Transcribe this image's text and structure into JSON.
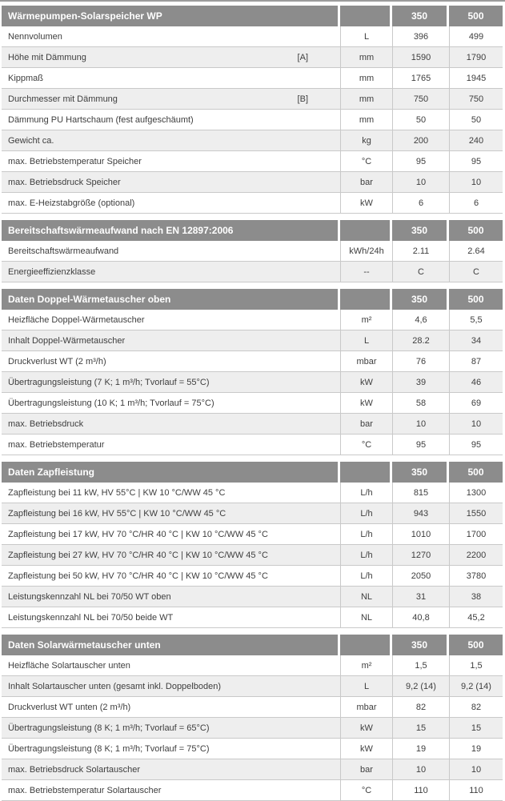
{
  "table": {
    "sections": [
      {
        "title": "Wärmepumpen-Solarspeicher WP",
        "col350": "350",
        "col500": "500",
        "rows": [
          {
            "label": "Nennvolumen",
            "unit": "L",
            "v350": "396",
            "v500": "499"
          },
          {
            "label": "Höhe mit Dämmung",
            "bracket": "[A]",
            "unit": "mm",
            "v350": "1590",
            "v500": "1790"
          },
          {
            "label": "Kippmaß",
            "unit": "mm",
            "v350": "1765",
            "v500": "1945"
          },
          {
            "label": "Durchmesser mit Dämmung",
            "bracket": "[B]",
            "unit": "mm",
            "v350": "750",
            "v500": "750"
          },
          {
            "label": "Dämmung PU Hartschaum (fest aufgeschäumt)",
            "unit": "mm",
            "v350": "50",
            "v500": "50"
          },
          {
            "label": "Gewicht ca.",
            "unit": "kg",
            "v350": "200",
            "v500": "240"
          },
          {
            "label": "max. Betriebstemperatur Speicher",
            "unit": "°C",
            "v350": "95",
            "v500": "95"
          },
          {
            "label": "max. Betriebsdruck Speicher",
            "unit": "bar",
            "v350": "10",
            "v500": "10"
          },
          {
            "label": "max. E-Heizstabgröße (optional)",
            "unit": "kW",
            "v350": "6",
            "v500": "6"
          }
        ]
      },
      {
        "title": "Bereitschaftswärmeaufwand nach EN 12897:2006",
        "col350": "350",
        "col500": "500",
        "rows": [
          {
            "label": "Bereitschaftswärmeaufwand",
            "unit": "kWh/24h",
            "v350": "2.11",
            "v500": "2.64"
          },
          {
            "label": "Energieeffizienzklasse",
            "unit": "--",
            "v350": "C",
            "v500": "C"
          }
        ]
      },
      {
        "title": "Daten Doppel-Wärmetauscher oben",
        "col350": "350",
        "col500": "500",
        "rows": [
          {
            "label": "Heizfläche Doppel-Wärmetauscher",
            "unit": "m²",
            "v350": "4,6",
            "v500": "5,5"
          },
          {
            "label": "Inhalt Doppel-Wärmetauscher",
            "unit": "L",
            "v350": "28.2",
            "v500": "34"
          },
          {
            "label": "Druckverlust WT (2 m³/h)",
            "unit": "mbar",
            "v350": "76",
            "v500": "87"
          },
          {
            "label": "Übertragungsleistung (7 K; 1 m³/h; Tvorlauf = 55°C)",
            "unit": "kW",
            "v350": "39",
            "v500": "46"
          },
          {
            "label": "Übertragungsleistung (10 K; 1 m³/h; Tvorlauf = 75°C)",
            "unit": "kW",
            "v350": "58",
            "v500": "69"
          },
          {
            "label": "max. Betriebsdruck",
            "unit": "bar",
            "v350": "10",
            "v500": "10"
          },
          {
            "label": "max. Betriebstemperatur",
            "unit": "°C",
            "v350": "95",
            "v500": "95"
          }
        ]
      },
      {
        "title": "Daten Zapfleistung",
        "col350": "350",
        "col500": "500",
        "rows": [
          {
            "label": "Zapfleistung bei 11 kW, HV 55°C | KW 10 °C/WW 45 °C",
            "unit": "L/h",
            "v350": "815",
            "v500": "1300"
          },
          {
            "label": "Zapfleistung bei 16 kW, HV 55°C | KW 10 °C/WW 45 °C",
            "unit": "L/h",
            "v350": "943",
            "v500": "1550"
          },
          {
            "label": "Zapfleistung bei 17 kW, HV 70 °C/HR 40 °C | KW 10 °C/WW 45 °C",
            "unit": "L/h",
            "v350": "1010",
            "v500": "1700"
          },
          {
            "label": "Zapfleistung bei 27 kW, HV 70 °C/HR 40 °C | KW 10 °C/WW 45 °C",
            "unit": "L/h",
            "v350": "1270",
            "v500": "2200"
          },
          {
            "label": "Zapfleistung bei 50 kW, HV 70 °C/HR 40 °C | KW 10 °C/WW 45 °C",
            "unit": "L/h",
            "v350": "2050",
            "v500": "3780"
          },
          {
            "label": "Leistungskennzahl NL bei 70/50 WT oben",
            "unit": "NL",
            "v350": "31",
            "v500": "38"
          },
          {
            "label": "Leistungskennzahl NL bei 70/50 beide WT",
            "unit": "NL",
            "v350": "40,8",
            "v500": "45,2"
          }
        ]
      },
      {
        "title": "Daten Solarwärmetauscher unten",
        "col350": "350",
        "col500": "500",
        "rows": [
          {
            "label": "Heizfläche Solartauscher unten",
            "unit": "m²",
            "v350": "1,5",
            "v500": "1,5"
          },
          {
            "label": "Inhalt Solartauscher unten (gesamt inkl. Doppelboden)",
            "unit": "L",
            "v350": "9,2 (14)",
            "v500": "9,2 (14)"
          },
          {
            "label": "Druckverlust WT unten (2 m³/h)",
            "unit": "mbar",
            "v350": "82",
            "v500": "82"
          },
          {
            "label": "Übertragungsleistung (8 K; 1 m³/h; Tvorlauf = 65°C)",
            "unit": "kW",
            "v350": "15",
            "v500": "15"
          },
          {
            "label": "Übertragungsleistung (8 K; 1 m³/h; Tvorlauf = 75°C)",
            "unit": "kW",
            "v350": "19",
            "v500": "19"
          },
          {
            "label": "max. Betriebsdruck Solartauscher",
            "unit": "bar",
            "v350": "10",
            "v500": "10"
          },
          {
            "label": "max. Betriebstemperatur Solartauscher",
            "unit": "°C",
            "v350": "110",
            "v500": "110"
          }
        ]
      }
    ],
    "colors": {
      "header_bg": "#8c8c8c",
      "header_text": "#ffffff",
      "row_alt_bg": "#eeeeee",
      "border": "#c9c9c9",
      "text": "#3e3e3e"
    }
  }
}
